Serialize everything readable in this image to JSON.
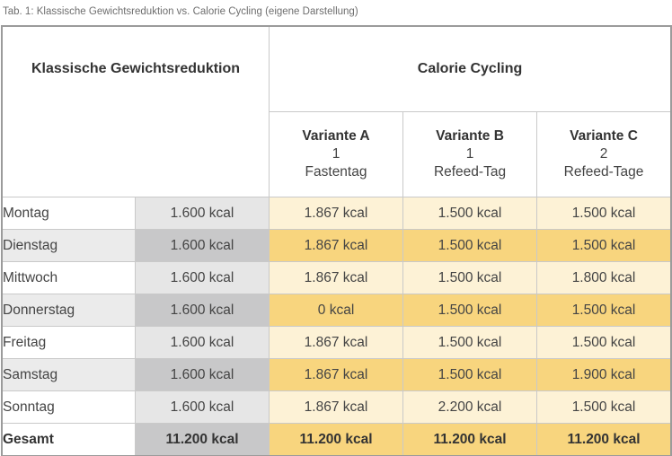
{
  "caption": "Tab. 1: Klassische Gewichtsreduktion vs. Calorie Cycling (eigene Darstellung)",
  "header": {
    "left": "Klassische Gewichtsreduktion",
    "right": "Calorie Cycling",
    "variants": [
      {
        "name": "Variante A",
        "num": "1",
        "desc": "Fastentag"
      },
      {
        "name": "Variante B",
        "num": "1",
        "desc": "Refeed-Tag"
      },
      {
        "name": "Variante C",
        "num": "2",
        "desc": "Refeed-Tage"
      }
    ]
  },
  "rows": [
    {
      "day": "Montag",
      "klass": "1.600 kcal",
      "a": "1.867 kcal",
      "b": "1.500 kcal",
      "c": "1.500 kcal"
    },
    {
      "day": "Dienstag",
      "klass": "1.600 kcal",
      "a": "1.867 kcal",
      "b": "1.500 kcal",
      "c": "1.500 kcal"
    },
    {
      "day": "Mittwoch",
      "klass": "1.600 kcal",
      "a": "1.867 kcal",
      "b": "1.500 kcal",
      "c": "1.800 kcal"
    },
    {
      "day": "Donnerstag",
      "klass": "1.600 kcal",
      "a": "0 kcal",
      "b": "1.500 kcal",
      "c": "1.500 kcal"
    },
    {
      "day": "Freitag",
      "klass": "1.600 kcal",
      "a": "1.867 kcal",
      "b": "1.500 kcal",
      "c": "1.500 kcal"
    },
    {
      "day": "Samstag",
      "klass": "1.600 kcal",
      "a": "1.867 kcal",
      "b": "1.500 kcal",
      "c": "1.900 kcal"
    },
    {
      "day": "Sonntag",
      "klass": "1.600 kcal",
      "a": "1.867 kcal",
      "b": "2.200 kcal",
      "c": "1.500 kcal"
    }
  ],
  "total": {
    "day": "Gesamt",
    "klass": "11.200 kcal",
    "a": "11.200 kcal",
    "b": "11.200 kcal",
    "c": "11.200 kcal"
  },
  "colors": {
    "klass_light": "#e6e6e6",
    "klass_dark": "#c8c8c9",
    "cc_light": "#fdf2d6",
    "cc_dark": "#f8d57e"
  }
}
